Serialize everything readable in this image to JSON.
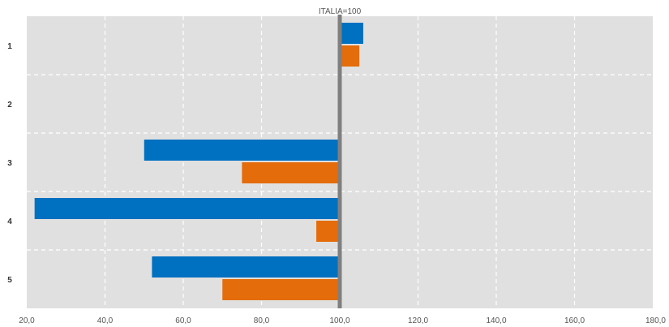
{
  "chart_data": {
    "type": "bar",
    "orientation": "horizontal",
    "categories": [
      "1",
      "2",
      "3",
      "4",
      "5"
    ],
    "series": [
      {
        "values": [
          106,
          null,
          50,
          22,
          52
        ],
        "color": "#0070C0"
      },
      {
        "values": [
          105,
          null,
          75,
          94,
          70
        ],
        "color": "#E46C0A"
      }
    ],
    "reference_line": {
      "value": 100,
      "label": "ITALIA=100",
      "color": "#7f7f7f"
    },
    "xlim": [
      20,
      180
    ],
    "x_ticks": [
      "20,0",
      "40,0",
      "60,0",
      "80,0",
      "100,0",
      "120,0",
      "140,0",
      "160,0",
      "180,0"
    ],
    "grid": true,
    "plot_background": "#e0e0e0",
    "legend": "none"
  }
}
